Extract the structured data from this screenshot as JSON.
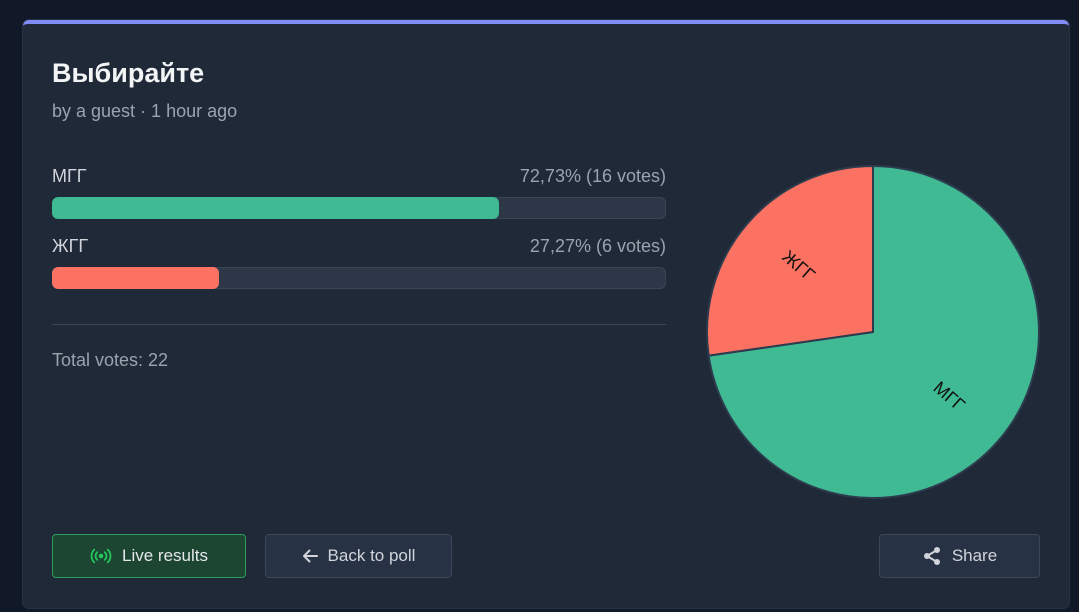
{
  "poll": {
    "title": "Выбирайте",
    "meta": "by a guest · 1 hour ago",
    "options": [
      {
        "label": "МГГ",
        "stats": "72,73% (16 votes)",
        "percent": 72.73,
        "votes": 16,
        "color": "#3fba92"
      },
      {
        "label": "ЖГГ",
        "stats": "27,27% (6 votes)",
        "percent": 27.27,
        "votes": 6,
        "color": "#fb7262"
      }
    ],
    "total": "Total votes: 22"
  },
  "buttons": {
    "live": "Live results",
    "back": "Back to poll",
    "share": "Share"
  },
  "icons": {
    "live": "broadcast-icon",
    "back": "arrow-left-icon",
    "share": "share-icon"
  },
  "colors": {
    "accent": "#818cf8",
    "live_icon": "#22c55e"
  },
  "chart_data": {
    "type": "pie",
    "categories": [
      "МГГ",
      "ЖГГ"
    ],
    "values": [
      16,
      6
    ],
    "colors": [
      "#3fba92",
      "#fb7262"
    ]
  }
}
